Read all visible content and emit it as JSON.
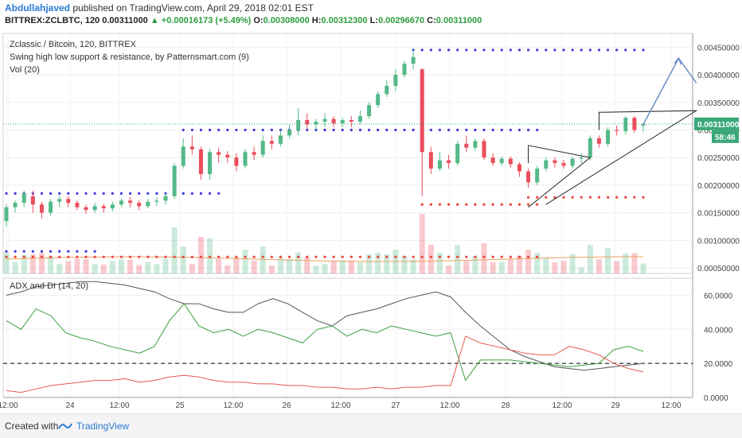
{
  "header": {
    "author": "Abdullahjaved",
    "published": "published on TradingView.com, April 29, 2018 02:01 EST",
    "symbol": "BITTREX:ZCLBTC, 120",
    "last": "0.00311000",
    "change": "▲ +0.00016173 (+5.49%)",
    "o_label": "O:",
    "o_value": "0.00308000",
    "h_label": "H:",
    "h_value": "0.00312300",
    "l_label": "L:",
    "l_value": "0.00296670",
    "c_label": "C:",
    "c_value": "0.00311000"
  },
  "legend": {
    "title": "Zclassic / Bitcoin, 120, BITTREX",
    "indicator": "Swing high low support & resistance, by Patternsmart.com (9)",
    "volume": "Vol (20)",
    "adx": "ADX and DI (14, 20)"
  },
  "price_tag": "0.00311000",
  "countdown": "58:46",
  "footer": {
    "created": "Created with",
    "brand": "TradingView"
  },
  "colors": {
    "up": "#53b987",
    "down": "#eb4d5c",
    "adx": "#555555",
    "di_plus": "#3d9d3d",
    "di_minus": "#e8584b",
    "support": "#e8443a",
    "resistance": "#3a3ae0",
    "pattern": "#222222",
    "arrow": "#6b8cc7"
  },
  "chart_data": [
    {
      "type": "candlestick",
      "y_ticks": [
        "0.00450000",
        "0.00400000",
        "0.00350000",
        "0.00300000",
        "0.00250000",
        "0.00200000",
        "0.00150000",
        "0.00100000",
        "0.00050000"
      ],
      "ylim": [
        0.0004,
        0.00475
      ],
      "x_ticks": [
        "12:00",
        "24",
        "12:00",
        "25",
        "12:00",
        "26",
        "12:00",
        "27",
        "12:00",
        "28",
        "12:00",
        "29",
        "12:00"
      ],
      "candles": [
        [
          0.00135,
          0.0016,
          0.00125,
          0.00165
        ],
        [
          0.0016,
          0.00168,
          0.0015,
          0.00172
        ],
        [
          0.00168,
          0.00185,
          0.0016,
          0.0019
        ],
        [
          0.0018,
          0.00165,
          0.0015,
          0.0019
        ],
        [
          0.00165,
          0.0015,
          0.0014,
          0.0017
        ],
        [
          0.0015,
          0.0017,
          0.00145,
          0.00175
        ],
        [
          0.0017,
          0.00175,
          0.0016,
          0.0018
        ],
        [
          0.00175,
          0.00168,
          0.0016,
          0.0018
        ],
        [
          0.00168,
          0.0016,
          0.00155,
          0.00172
        ],
        [
          0.0016,
          0.00155,
          0.00148,
          0.00165
        ],
        [
          0.00155,
          0.00162,
          0.0015,
          0.00168
        ],
        [
          0.00162,
          0.00158,
          0.0015,
          0.00166
        ],
        [
          0.00158,
          0.00165,
          0.00152,
          0.0017
        ],
        [
          0.00165,
          0.00172,
          0.0016,
          0.00176
        ],
        [
          0.00172,
          0.00168,
          0.0016,
          0.00178
        ],
        [
          0.00168,
          0.00162,
          0.00155,
          0.00172
        ],
        [
          0.00162,
          0.0017,
          0.00158,
          0.00175
        ],
        [
          0.0017,
          0.00172,
          0.00162,
          0.00178
        ],
        [
          0.00172,
          0.0018,
          0.00165,
          0.00185
        ],
        [
          0.0018,
          0.00235,
          0.00175,
          0.0024
        ],
        [
          0.00235,
          0.0027,
          0.0023,
          0.00285
        ],
        [
          0.0027,
          0.00265,
          0.00255,
          0.0029
        ],
        [
          0.00265,
          0.0022,
          0.0021,
          0.0027
        ],
        [
          0.0022,
          0.0026,
          0.0021,
          0.00265
        ],
        [
          0.0026,
          0.00255,
          0.0024,
          0.00268
        ],
        [
          0.00255,
          0.0025,
          0.0024,
          0.00262
        ],
        [
          0.0025,
          0.00235,
          0.00225,
          0.00258
        ],
        [
          0.00235,
          0.0026,
          0.0023,
          0.00265
        ],
        [
          0.0026,
          0.00255,
          0.00245,
          0.0027
        ],
        [
          0.00255,
          0.0028,
          0.0025,
          0.0029
        ],
        [
          0.0028,
          0.00275,
          0.00265,
          0.0029
        ],
        [
          0.00275,
          0.0029,
          0.0027,
          0.003
        ],
        [
          0.0029,
          0.003,
          0.00285,
          0.0031
        ],
        [
          0.003,
          0.00318,
          0.0029,
          0.0034
        ],
        [
          0.00318,
          0.0031,
          0.003,
          0.0033
        ],
        [
          0.0031,
          0.00315,
          0.003,
          0.0032
        ],
        [
          0.00315,
          0.0032,
          0.00305,
          0.0033
        ],
        [
          0.0032,
          0.00312,
          0.00305,
          0.00325
        ],
        [
          0.00312,
          0.00318,
          0.00305,
          0.00322
        ],
        [
          0.00318,
          0.00315,
          0.00305,
          0.00325
        ],
        [
          0.00315,
          0.00325,
          0.0031,
          0.00335
        ],
        [
          0.00325,
          0.00345,
          0.0032,
          0.0035
        ],
        [
          0.00345,
          0.00365,
          0.0034,
          0.0037
        ],
        [
          0.00365,
          0.0038,
          0.0036,
          0.0039
        ],
        [
          0.0038,
          0.004,
          0.0037,
          0.0041
        ],
        [
          0.004,
          0.0042,
          0.00395,
          0.00425
        ],
        [
          0.0042,
          0.00432,
          0.0041,
          0.00445
        ],
        [
          0.0041,
          0.0026,
          0.0018,
          0.00412
        ],
        [
          0.0026,
          0.0023,
          0.0022,
          0.0027
        ],
        [
          0.0023,
          0.00245,
          0.00225,
          0.0026
        ],
        [
          0.00245,
          0.0024,
          0.0023,
          0.00255
        ],
        [
          0.0024,
          0.00275,
          0.00235,
          0.0028
        ],
        [
          0.00275,
          0.00268,
          0.0026,
          0.0029
        ],
        [
          0.00268,
          0.0028,
          0.00262,
          0.00285
        ],
        [
          0.0028,
          0.0025,
          0.00245,
          0.00285
        ],
        [
          0.0025,
          0.0024,
          0.00235,
          0.00258
        ],
        [
          0.0024,
          0.00248,
          0.00235,
          0.00252
        ],
        [
          0.00248,
          0.00238,
          0.00232,
          0.00252
        ],
        [
          0.00238,
          0.00225,
          0.00215,
          0.00242
        ],
        [
          0.00225,
          0.00205,
          0.00195,
          0.0023
        ],
        [
          0.00205,
          0.0023,
          0.002,
          0.00235
        ],
        [
          0.0023,
          0.00245,
          0.00225,
          0.0025
        ],
        [
          0.00245,
          0.0024,
          0.00232,
          0.0025
        ],
        [
          0.0024,
          0.00235,
          0.0023,
          0.00246
        ],
        [
          0.00235,
          0.00248,
          0.0023,
          0.00252
        ],
        [
          0.00248,
          0.0025,
          0.0024,
          0.00258
        ],
        [
          0.0025,
          0.00285,
          0.00245,
          0.0029
        ],
        [
          0.00285,
          0.00275,
          0.00268,
          0.0029
        ],
        [
          0.00275,
          0.003,
          0.0027,
          0.00305
        ],
        [
          0.003,
          0.00298,
          0.0029,
          0.00308
        ],
        [
          0.00298,
          0.00322,
          0.00292,
          0.00325
        ],
        [
          0.00322,
          0.003,
          0.00295,
          0.00325
        ],
        [
          0.00308,
          0.00311,
          0.00297,
          0.00312
        ]
      ],
      "resistance_levels": [
        {
          "value": 0.00185,
          "from": 0,
          "to": 24
        },
        {
          "value": 0.003,
          "from": 20,
          "to": 60
        },
        {
          "value": 0.00445,
          "from": 46,
          "to": 72
        },
        {
          "value": 0.0008,
          "from": 0,
          "to": 10
        }
      ],
      "support_levels": [
        {
          "value": 0.0007,
          "from": 0,
          "to": 60
        },
        {
          "value": 0.00165,
          "from": 47,
          "to": 60
        },
        {
          "value": 0.00178,
          "from": 59,
          "to": 72
        }
      ],
      "volume_max": 0.0017
    },
    {
      "type": "line",
      "title": "ADX and DI (14, 20)",
      "y_ticks": [
        "60.0000",
        "40.0000",
        "20.0000",
        "0.0000"
      ],
      "ylim": [
        0,
        70
      ],
      "threshold": 20,
      "series": [
        {
          "values": [
            60,
            62,
            65,
            66,
            67,
            68,
            68,
            67,
            66,
            64,
            62,
            58,
            55,
            55,
            52,
            50,
            50,
            55,
            58,
            55,
            50,
            45,
            42,
            48,
            50,
            52,
            55,
            58,
            60,
            62,
            59,
            50,
            42,
            35,
            28,
            24,
            21,
            18,
            17,
            16,
            17,
            18,
            19,
            20
          ]
        },
        {
          "values": [
            45,
            40,
            52,
            48,
            38,
            35,
            33,
            30,
            28,
            26,
            30,
            45,
            55,
            42,
            38,
            40,
            36,
            40,
            38,
            35,
            32,
            40,
            42,
            36,
            40,
            38,
            42,
            40,
            38,
            36,
            38,
            10,
            22,
            22,
            22,
            21,
            20,
            19,
            18,
            19,
            20,
            28,
            30,
            27
          ]
        },
        {
          "values": [
            4,
            3,
            5,
            7,
            8,
            9,
            10,
            10,
            11,
            9,
            10,
            12,
            13,
            12,
            10,
            9,
            9,
            8,
            8,
            7,
            7,
            6,
            6,
            5,
            5,
            6,
            5,
            6,
            6,
            7,
            7,
            36,
            32,
            30,
            28,
            26,
            25,
            25,
            30,
            28,
            25,
            20,
            17,
            15
          ]
        }
      ]
    }
  ]
}
